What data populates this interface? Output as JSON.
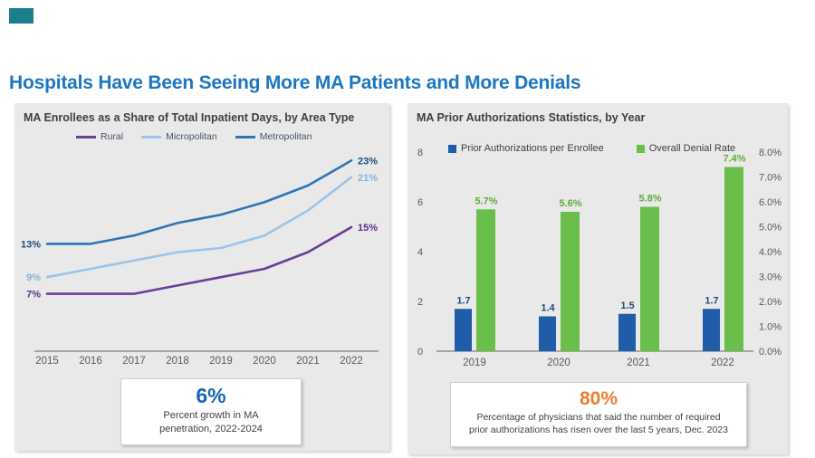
{
  "page": {
    "title": "Hospitals Have Been Seeing More MA Patients and More Denials",
    "title_color": "#1b76c0"
  },
  "logo": {
    "color": "#1a7f8a"
  },
  "chart_data": [
    {
      "type": "line",
      "title": "MA Enrollees as a Share of Total Inpatient Days, by Area Type",
      "x": [
        "2015",
        "2016",
        "2017",
        "2018",
        "2019",
        "2020",
        "2021",
        "2022"
      ],
      "series": [
        {
          "name": "Rural",
          "color": "#6a3d98",
          "label_color": "#5b3286",
          "values": [
            7,
            7,
            7,
            8,
            9,
            10,
            12,
            15
          ],
          "start_label": "7%",
          "end_label": "15%"
        },
        {
          "name": "Micropolitan",
          "color": "#9dc3e6",
          "label_color": "#85b4dd",
          "values": [
            9,
            10,
            11,
            12,
            12.5,
            14,
            17,
            21
          ],
          "start_label": "9%",
          "end_label": "21%"
        },
        {
          "name": "Metropolitan",
          "color": "#2e75b6",
          "label_color": "#1f4e79",
          "values": [
            13,
            13,
            14,
            15.5,
            16.5,
            18,
            20,
            23
          ],
          "start_label": "13%",
          "end_label": "23%"
        }
      ],
      "ylim": [
        0,
        25
      ],
      "grid": false,
      "legend_position": "top",
      "axis_text_color": "#595959",
      "axis_line_color": "#a6a6a6"
    },
    {
      "type": "bar",
      "title": "MA Prior Authorizations Statistics, by Year",
      "categories": [
        "2019",
        "2020",
        "2021",
        "2022"
      ],
      "series": [
        {
          "name": "Prior Authorizations per Enrollee",
          "axis": "left",
          "color": "#1f5da8",
          "label_color": "#1f4e79",
          "values": [
            1.7,
            1.4,
            1.5,
            1.7
          ],
          "labels": [
            "1.7",
            "1.4",
            "1.5",
            "1.7"
          ]
        },
        {
          "name": "Overall Denial Rate",
          "axis": "right",
          "color": "#69bf4a",
          "label_color": "#61ab3c",
          "values": [
            5.7,
            5.6,
            5.8,
            7.4
          ],
          "labels": [
            "5.7%",
            "5.6%",
            "5.8%",
            "7.4%"
          ]
        }
      ],
      "left_axis": {
        "min": 0,
        "max": 8,
        "ticks": [
          "0",
          "2",
          "4",
          "6",
          "8"
        ]
      },
      "right_axis": {
        "min": 0,
        "max": 8,
        "ticks": [
          "0.0%",
          "1.0%",
          "2.0%",
          "3.0%",
          "4.0%",
          "5.0%",
          "6.0%",
          "7.0%",
          "8.0%"
        ]
      },
      "grid": false,
      "legend_position": "top",
      "axis_text_color": "#595959",
      "axis_line_color": "#a6a6a6"
    }
  ],
  "callouts": {
    "left": {
      "value": "6%",
      "value_color": "#1862b5",
      "line1": "Percent growth in MA",
      "line2": "penetration, 2022-2024"
    },
    "right": {
      "value": "80%",
      "value_color": "#ed7d31",
      "line1": "Percentage of physicians that said the number of required",
      "line2": "prior authorizations has risen over the last 5 years, Dec. 2023"
    }
  }
}
